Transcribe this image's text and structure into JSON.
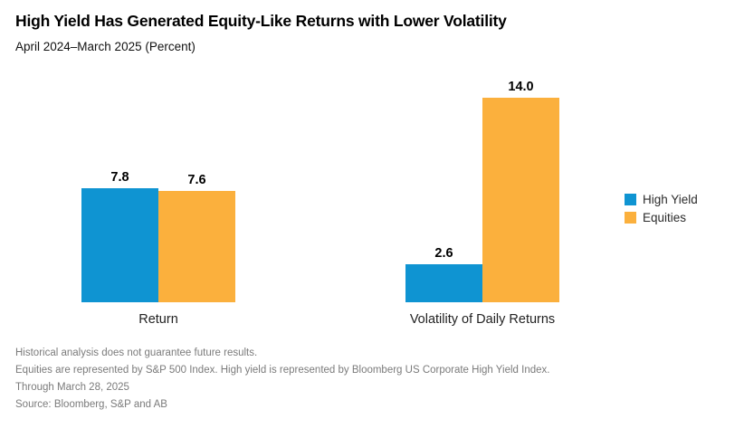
{
  "header": {
    "title": "High Yield Has Generated Equity-Like Returns with Lower Volatility",
    "subtitle": "April 2024–March 2025 (Percent)"
  },
  "chart_data": {
    "type": "bar",
    "categories": [
      "Return",
      "Volatility of Daily Returns"
    ],
    "series": [
      {
        "name": "High Yield",
        "values": [
          7.8,
          2.6
        ],
        "color": "#0F94D2"
      },
      {
        "name": "Equities",
        "values": [
          7.6,
          14.0
        ],
        "color": "#FBB03D"
      }
    ],
    "value_labels": [
      "7.8",
      "7.6",
      "2.6",
      "14.0"
    ],
    "title": "High Yield Has Generated Equity-Like Returns with Lower Volatility",
    "xlabel": "",
    "ylabel": "Percent",
    "ylim": [
      0,
      14
    ],
    "grid": false,
    "axis_visible": false,
    "legend_position": "right"
  },
  "footnotes": [
    "Historical analysis does not guarantee future results.",
    "Equities are represented by S&P 500 Index. High yield is represented by Bloomberg US Corporate High Yield Index.",
    "Through March 28, 2025",
    "Source: Bloomberg, S&P and AB"
  ]
}
